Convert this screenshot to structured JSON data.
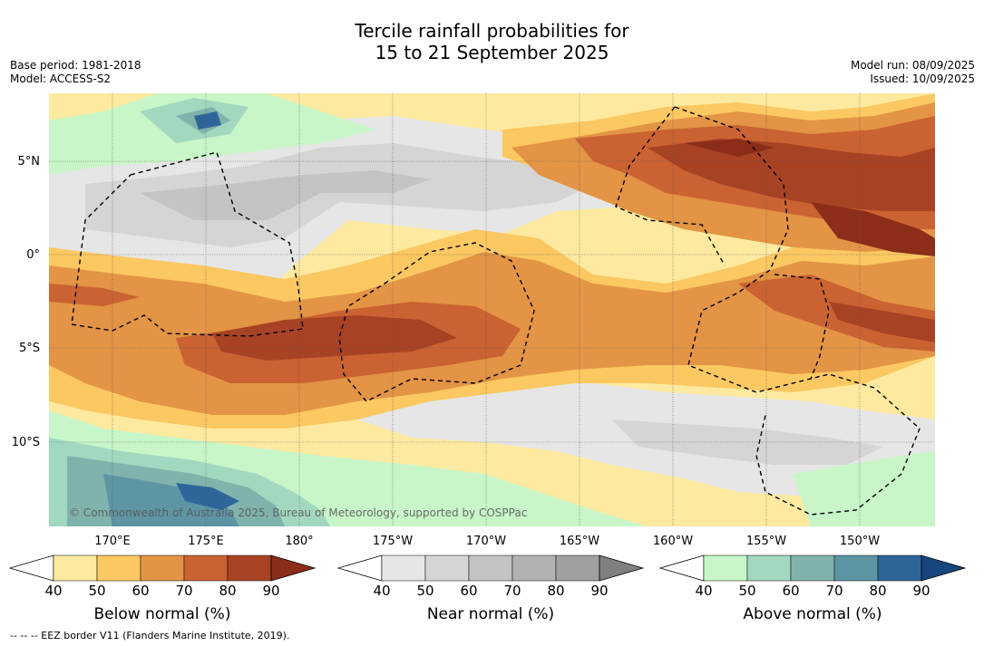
{
  "title": {
    "line1": "Tercile rainfall probabilities for",
    "line2": "15 to 21 September 2025"
  },
  "meta_left": {
    "base_period": "Base period: 1981-2018",
    "model": "Model: ACCESS-S2"
  },
  "meta_right": {
    "model_run": "Model run: 08/09/2025",
    "issued": "Issued: 10/09/2025"
  },
  "lat_labels": [
    "5°N",
    "0°",
    "5°S",
    "10°S"
  ],
  "lon_labels": [
    "170°E",
    "175°E",
    "180°",
    "175°W",
    "170°W",
    "165°W",
    "160°W",
    "155°W",
    "150°W"
  ],
  "copyright": "© Commonwealth of Australia 2025, Bureau of Meteorology, supported by COSPPac",
  "colorbars": [
    {
      "title": "Below normal (%)",
      "ticks": [
        "40",
        "50",
        "60",
        "70",
        "80",
        "90"
      ],
      "colors": [
        "#ffffff",
        "#fdeaa0",
        "#fcc862",
        "#e39444",
        "#cb6232",
        "#a84224",
        "#8c2d1a"
      ]
    },
    {
      "title": "Near normal (%)",
      "ticks": [
        "40",
        "50",
        "60",
        "70",
        "80",
        "90"
      ],
      "colors": [
        "#ffffff",
        "#e6e6e6",
        "#d5d5d5",
        "#c4c4c4",
        "#b2b2b2",
        "#a0a0a0",
        "#808080"
      ]
    },
    {
      "title": "Above normal (%)",
      "ticks": [
        "40",
        "50",
        "60",
        "70",
        "80",
        "90"
      ],
      "colors": [
        "#ffffff",
        "#c8f6c8",
        "#a2d8c0",
        "#80b3ac",
        "#5e95a5",
        "#2f6699",
        "#17467e"
      ]
    }
  ],
  "footer": "--  --  -- EEZ border V11 (Flanders Marine Institute, 2019)."
}
